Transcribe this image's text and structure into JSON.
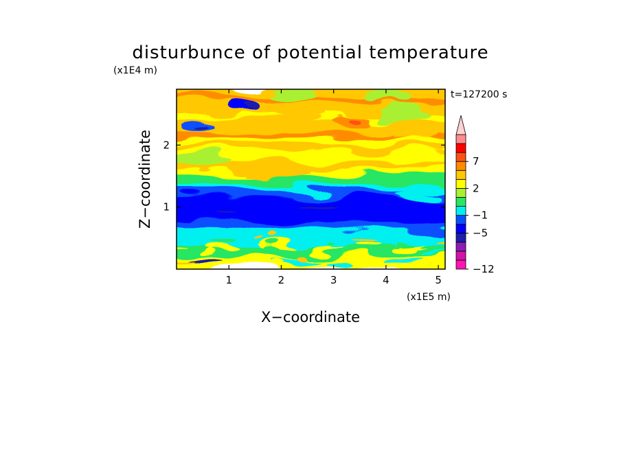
{
  "chart_data": {
    "type": "heatmap",
    "title": "disturbunce of potential temperature",
    "xlabel": "X−coordinate",
    "ylabel": "Z−coordinate",
    "x_unit": "(x1E5 m)",
    "y_unit": "(x1E4 m)",
    "time_label": "t=127200 s",
    "xlim": [
      0,
      5.13
    ],
    "ylim": [
      0,
      2.9
    ],
    "x_ticks": [
      "1",
      "2",
      "3",
      "4",
      "5"
    ],
    "y_ticks": [
      "1",
      "2"
    ],
    "colorbar": {
      "levels": [
        -12,
        -11,
        -9,
        -7,
        -5,
        -3,
        -1,
        0,
        1,
        2,
        3,
        5,
        7,
        9,
        11
      ],
      "colors": [
        "#ff14b4",
        "#d214aa",
        "#8c1eb4",
        "#1e1eaa",
        "#0000ff",
        "#0a50ff",
        "#00f0f0",
        "#28e664",
        "#aaf032",
        "#ffff00",
        "#ffc800",
        "#ff8c00",
        "#ff5014",
        "#ff0000",
        "#ff8c8c",
        "#ffd2d2"
      ],
      "tick_labels": [
        "7",
        "2",
        "−1",
        "−5",
        "−12"
      ]
    },
    "grid": false,
    "legend": "colorbar-right"
  }
}
